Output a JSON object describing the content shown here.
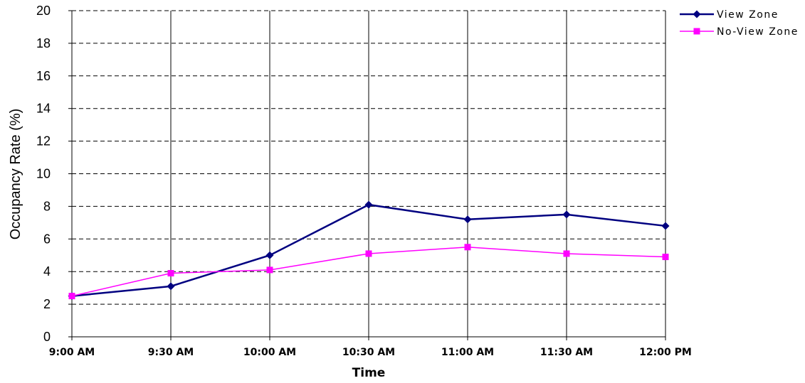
{
  "chart_data": {
    "type": "line",
    "title": "",
    "xlabel": "Time",
    "ylabel": "Occupancy Rate (%)",
    "categories": [
      "9:00 AM",
      "9:30 AM",
      "10:00 AM",
      "10:30 AM",
      "11:00 AM",
      "11:30 AM",
      "12:00 PM"
    ],
    "ylim": [
      0,
      20
    ],
    "yticks": [
      0,
      2,
      4,
      6,
      8,
      10,
      12,
      14,
      16,
      18,
      20
    ],
    "grid": "horizontal dashed, vertical solid",
    "legend_position": "top-right",
    "series": [
      {
        "name": "View Zone",
        "color": "#000080",
        "marker": "diamond",
        "values": [
          2.5,
          3.1,
          5.0,
          8.1,
          7.2,
          7.5,
          6.8
        ]
      },
      {
        "name": "No-View Zone",
        "color": "#ff00ff",
        "marker": "square",
        "values": [
          2.5,
          3.9,
          4.1,
          5.1,
          5.5,
          5.1,
          4.9
        ]
      }
    ]
  }
}
